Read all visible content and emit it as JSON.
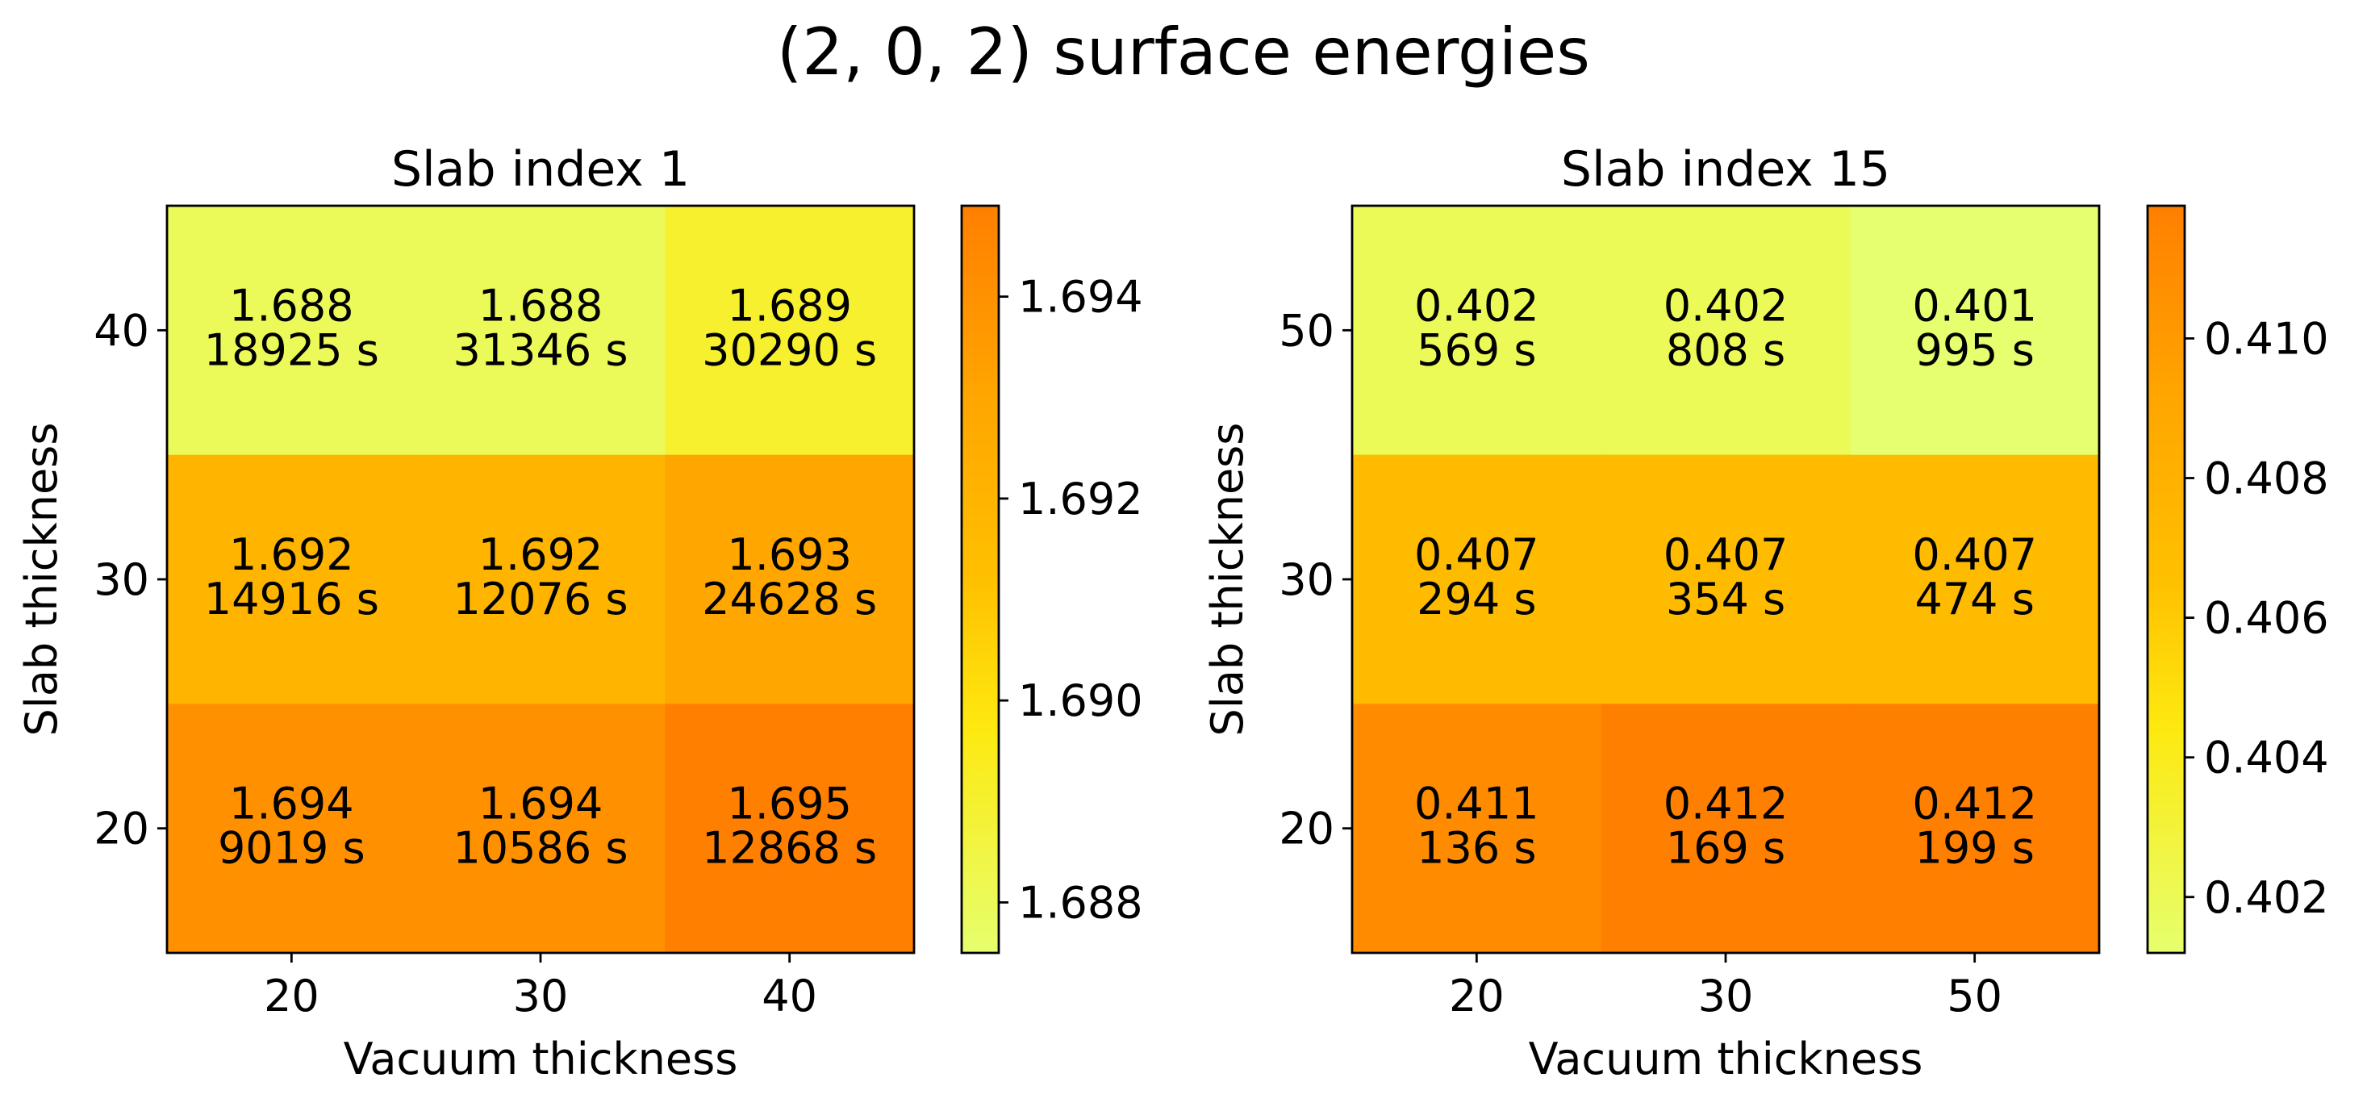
{
  "title": "(2, 0, 2) surface energies",
  "colors": {
    "cmap": [
      [
        0.0,
        "#e6ff6e"
      ],
      [
        0.3,
        "#fde910"
      ],
      [
        0.5,
        "#ffc000"
      ],
      [
        0.75,
        "#ffa500"
      ],
      [
        1.0,
        "#ff7f00"
      ]
    ]
  },
  "chart_data": [
    {
      "type": "heatmap",
      "title": "Slab index 1",
      "xlabel": "Vacuum thickness",
      "ylabel": "Slab thickness",
      "x": [
        "20",
        "30",
        "40"
      ],
      "y": [
        "40",
        "30",
        "20"
      ],
      "values": [
        [
          1.688,
          1.688,
          1.689
        ],
        [
          1.692,
          1.692,
          1.693
        ],
        [
          1.694,
          1.694,
          1.695
        ]
      ],
      "times": [
        [
          "18925 s",
          "31346 s",
          "30290 s"
        ],
        [
          "14916 s",
          "12076 s",
          "24628 s"
        ],
        [
          "9019 s",
          "10586 s",
          "12868 s"
        ]
      ],
      "cell_labels": [
        [
          "1.688",
          "1.688",
          "1.689"
        ],
        [
          "1.692",
          "1.692",
          "1.693"
        ],
        [
          "1.694",
          "1.694",
          "1.695"
        ]
      ],
      "colorbar": {
        "min": 1.6875,
        "max": 1.6949,
        "ticks": [
          1.688,
          1.69,
          1.692,
          1.694
        ],
        "tick_labels": [
          "1.688",
          "1.690",
          "1.692",
          "1.694"
        ]
      }
    },
    {
      "type": "heatmap",
      "title": "Slab index 15",
      "xlabel": "Vacuum thickness",
      "ylabel": "Slab thickness",
      "x": [
        "20",
        "30",
        "50"
      ],
      "y": [
        "50",
        "30",
        "20"
      ],
      "values": [
        [
          0.402,
          0.402,
          0.401
        ],
        [
          0.407,
          0.407,
          0.407
        ],
        [
          0.411,
          0.412,
          0.412
        ]
      ],
      "times": [
        [
          "569 s",
          "808 s",
          "995 s"
        ],
        [
          "294 s",
          "354 s",
          "474 s"
        ],
        [
          "136 s",
          "169 s",
          "199 s"
        ]
      ],
      "cell_labels": [
        [
          "0.402",
          "0.402",
          "0.401"
        ],
        [
          "0.407",
          "0.407",
          "0.407"
        ],
        [
          "0.411",
          "0.412",
          "0.412"
        ]
      ],
      "colorbar": {
        "min": 0.4012,
        "max": 0.4119,
        "ticks": [
          0.402,
          0.404,
          0.406,
          0.408,
          0.41
        ],
        "tick_labels": [
          "0.402",
          "0.404",
          "0.406",
          "0.408",
          "0.410"
        ]
      }
    }
  ]
}
